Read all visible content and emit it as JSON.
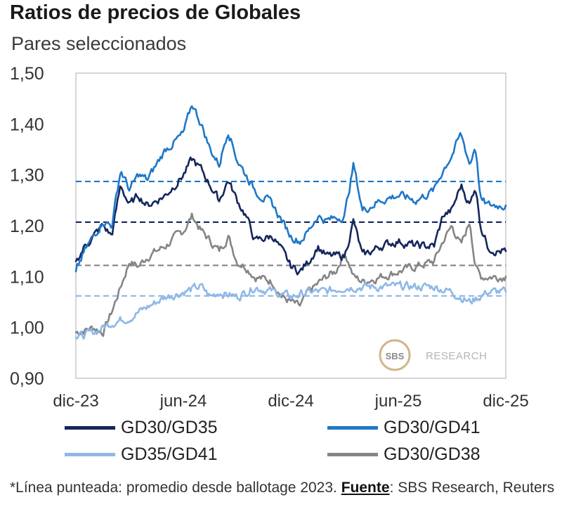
{
  "title": "Ratios de precios de Globales",
  "subtitle": "Pares seleccionados",
  "footnote": {
    "prefix": "*Línea punteada: promedio desde ballotage 2023. ",
    "source_label": "Fuente",
    "suffix": ": SBS Research, Reuters"
  },
  "watermark": {
    "logo": "SBS",
    "text": "RESEARCH"
  },
  "colors": {
    "gd30_gd35": "#14265c",
    "gd30_gd41": "#1f78c8",
    "gd35_gd41": "#8fb8e6",
    "gd30_gd38": "#858585"
  },
  "chart_data": {
    "type": "line",
    "title": "Ratios de precios de Globales",
    "subtitle": "Pares seleccionados",
    "xlabel": "",
    "ylabel": "",
    "ylim": [
      0.9,
      1.5
    ],
    "yticks": [
      "0,90",
      "1,00",
      "1,10",
      "1,20",
      "1,30",
      "1,40",
      "1,50"
    ],
    "xticks": [
      "dic-23",
      "jun-24",
      "dic-24",
      "jun-25",
      "dic-25"
    ],
    "x_range_months": [
      0,
      24
    ],
    "legend_position": "bottom",
    "series": [
      {
        "key": "gd30_gd35",
        "name": "GD30/GD35",
        "average": 1.207,
        "x": [
          0,
          0.5,
          1,
          1.5,
          2,
          2.5,
          3,
          3.5,
          4,
          5,
          6,
          6.5,
          7,
          7.5,
          8,
          8.5,
          9,
          9.5,
          10,
          11,
          11.5,
          12,
          12.5,
          13,
          13.5,
          14,
          15,
          15.5,
          16,
          17,
          18,
          19,
          20,
          20.5,
          21,
          21.5,
          22,
          22.3,
          22.6,
          23,
          23.5,
          24
        ],
        "y": [
          1.13,
          1.16,
          1.18,
          1.2,
          1.18,
          1.28,
          1.24,
          1.26,
          1.24,
          1.26,
          1.3,
          1.33,
          1.31,
          1.28,
          1.25,
          1.29,
          1.25,
          1.22,
          1.17,
          1.18,
          1.15,
          1.12,
          1.11,
          1.13,
          1.16,
          1.14,
          1.14,
          1.21,
          1.14,
          1.16,
          1.17,
          1.16,
          1.16,
          1.22,
          1.23,
          1.28,
          1.24,
          1.28,
          1.2,
          1.16,
          1.15,
          1.15
        ]
      },
      {
        "key": "gd30_gd41",
        "name": "GD30/GD41",
        "average": 1.287,
        "x": [
          0,
          0.5,
          1,
          1.5,
          2,
          2.5,
          3,
          3.5,
          4,
          5,
          6,
          6.5,
          7,
          7.5,
          8,
          8.5,
          9,
          9.5,
          10,
          11,
          11.5,
          12,
          12.5,
          13,
          13.5,
          14,
          15,
          15.5,
          16,
          17,
          18,
          19,
          20,
          20.5,
          21,
          21.5,
          22,
          22.3,
          22.6,
          23,
          23.5,
          24
        ],
        "y": [
          1.11,
          1.15,
          1.18,
          1.21,
          1.2,
          1.31,
          1.27,
          1.3,
          1.29,
          1.35,
          1.38,
          1.44,
          1.4,
          1.35,
          1.32,
          1.39,
          1.33,
          1.3,
          1.27,
          1.24,
          1.21,
          1.18,
          1.17,
          1.19,
          1.22,
          1.21,
          1.22,
          1.32,
          1.23,
          1.25,
          1.26,
          1.25,
          1.27,
          1.31,
          1.34,
          1.38,
          1.32,
          1.36,
          1.25,
          1.24,
          1.24,
          1.24
        ]
      },
      {
        "key": "gd35_gd41",
        "name": "GD35/GD41",
        "average": 1.062,
        "x": [
          0,
          1,
          2,
          3,
          4,
          5,
          6,
          7,
          7.5,
          8,
          9,
          10,
          11,
          12,
          13,
          14,
          15,
          16,
          17,
          18,
          19,
          20,
          21,
          22,
          23,
          24
        ],
        "y": [
          0.98,
          0.99,
          1.01,
          1.02,
          1.04,
          1.06,
          1.07,
          1.08,
          1.06,
          1.07,
          1.06,
          1.08,
          1.07,
          1.06,
          1.07,
          1.07,
          1.08,
          1.08,
          1.08,
          1.08,
          1.08,
          1.08,
          1.07,
          1.05,
          1.07,
          1.07
        ]
      },
      {
        "key": "gd30_gd38",
        "name": "GD30/GD38",
        "average": 1.122,
        "x": [
          0,
          1,
          1.5,
          2,
          2.5,
          3,
          3.5,
          4,
          5,
          6,
          6.5,
          7,
          7.5,
          8,
          8.5,
          9,
          9.5,
          10,
          11,
          11.5,
          12,
          12.5,
          13,
          14,
          14.5,
          15,
          15.5,
          16,
          17,
          18,
          19,
          20,
          20.5,
          21,
          21.5,
          22,
          22.3,
          22.6,
          23,
          23.5,
          24
        ],
        "y": [
          0.99,
          1.0,
          0.99,
          1.03,
          1.08,
          1.13,
          1.12,
          1.14,
          1.16,
          1.19,
          1.22,
          1.19,
          1.17,
          1.15,
          1.18,
          1.13,
          1.12,
          1.1,
          1.09,
          1.06,
          1.05,
          1.04,
          1.07,
          1.1,
          1.11,
          1.15,
          1.1,
          1.09,
          1.1,
          1.11,
          1.12,
          1.13,
          1.17,
          1.2,
          1.16,
          1.21,
          1.12,
          1.1,
          1.1,
          1.1,
          1.1
        ]
      }
    ]
  }
}
